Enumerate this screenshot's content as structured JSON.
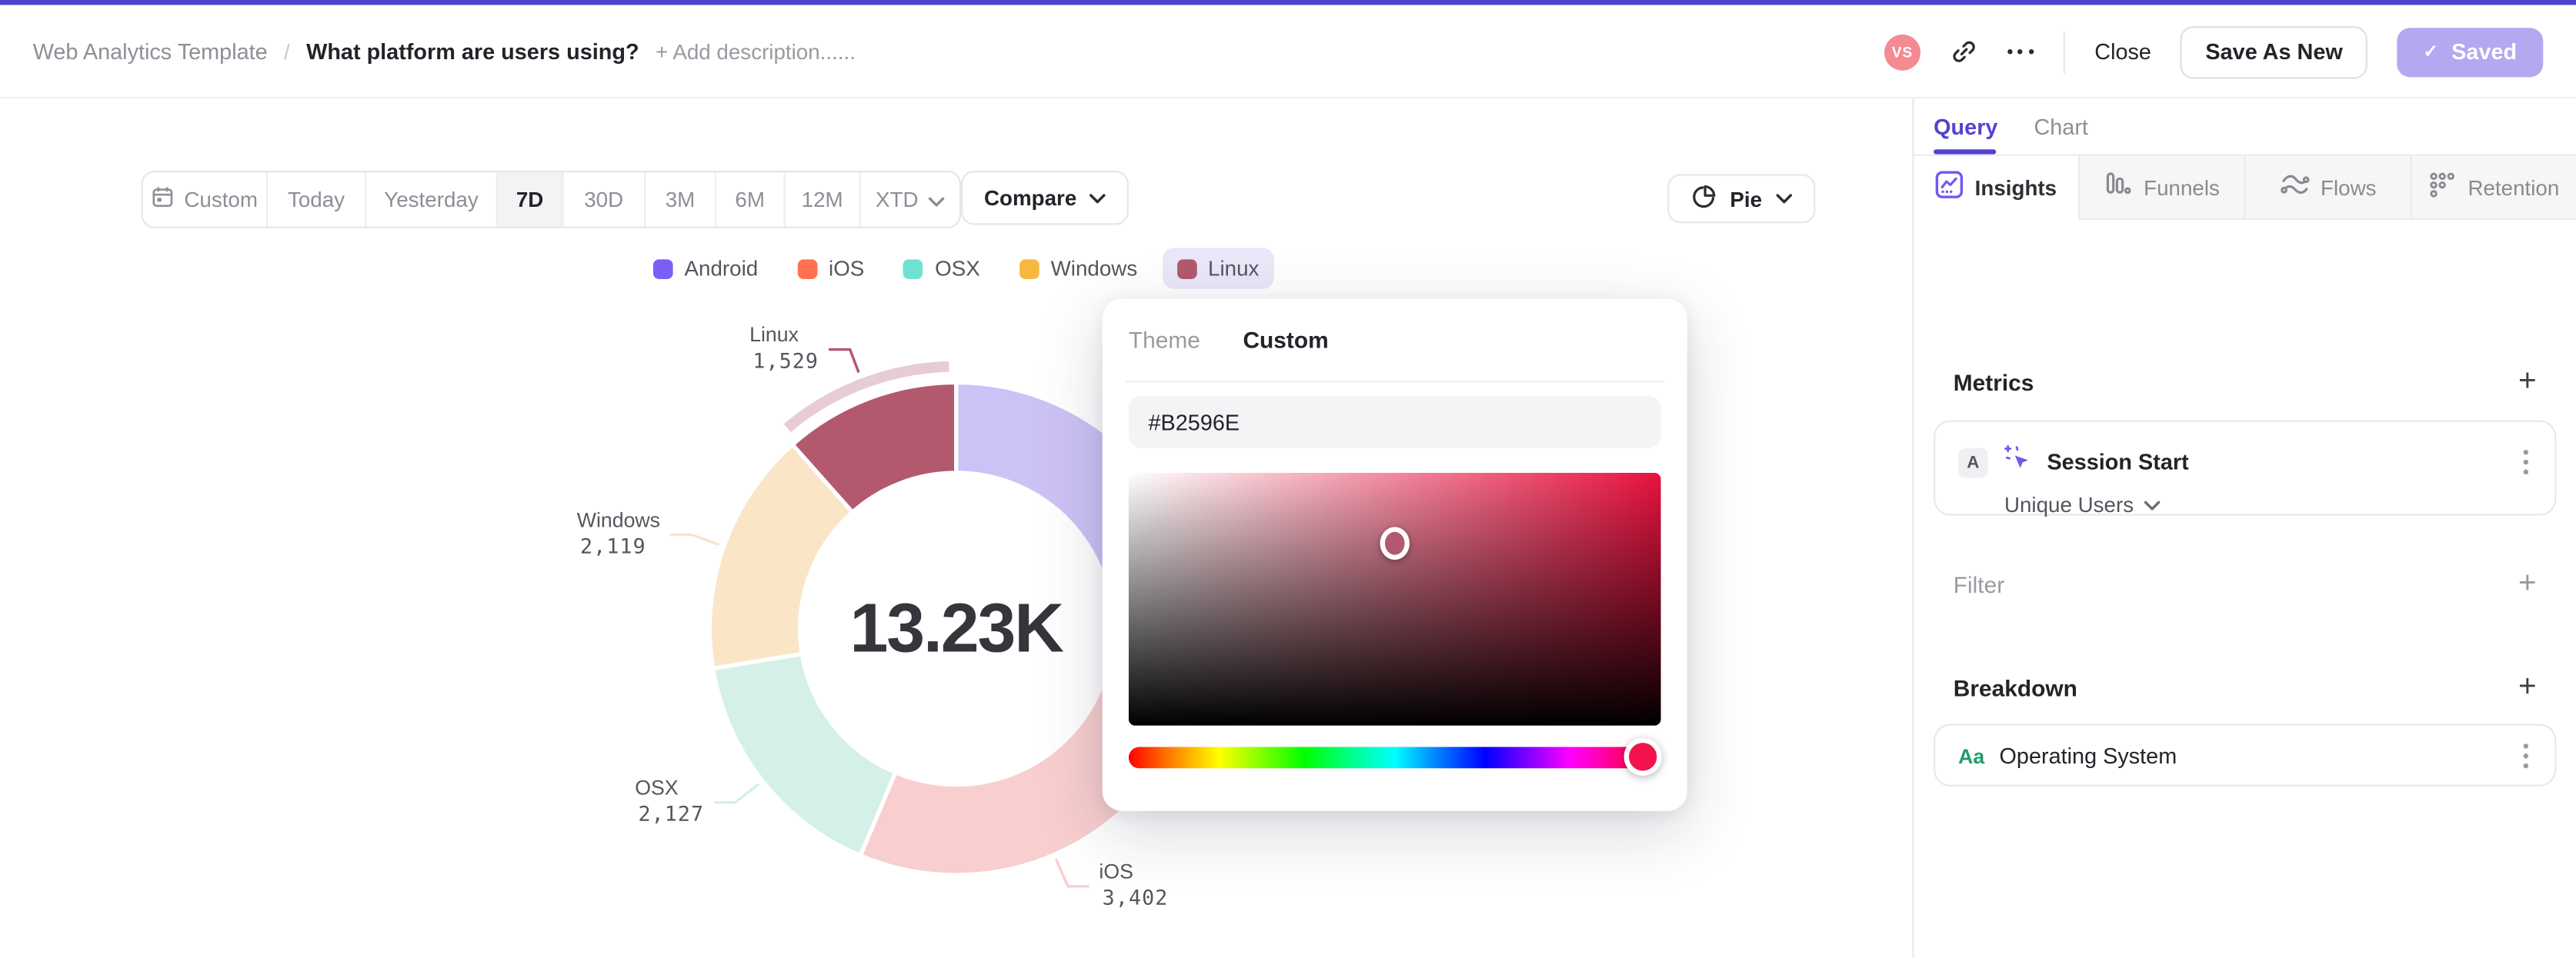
{
  "colors": {
    "accent": "#5243D2",
    "top_strip": "#4F42D0",
    "saved_button_bg": "#B3A9F1",
    "avatar_bg": "#F48B92",
    "legend_selected_pill": "#EAE7F9",
    "hue_handle": "#F2134E",
    "gradient_base_hue": "#E8123F",
    "query_tab_active": "#5243D2"
  },
  "topbar": {
    "breadcrumb_root": "Web Analytics Template",
    "breadcrumb_separator": "/",
    "title": "What platform are users using?",
    "add_description": "+ Add description......",
    "avatar_initials": "VS",
    "close_label": "Close",
    "save_as_new_label": "Save As New",
    "saved_label": "Saved",
    "saved_check": "✓"
  },
  "toolbar": {
    "ranges": [
      {
        "label": "Custom",
        "icon": "calendar-icon"
      },
      {
        "label": "Today"
      },
      {
        "label": "Yesterday"
      },
      {
        "label": "7D"
      },
      {
        "label": "30D"
      },
      {
        "label": "3M"
      },
      {
        "label": "6M"
      },
      {
        "label": "12M"
      },
      {
        "label": "XTD",
        "chevron": true
      }
    ],
    "selected_range": "7D",
    "compare_label": "Compare",
    "chart_type_label": "Pie"
  },
  "chart_data": {
    "type": "pie",
    "subtype": "donut",
    "center_total": "13.23K",
    "total_value": 13230,
    "selected_slice": "Linux",
    "legend_position": "top",
    "series": [
      {
        "name": "Android",
        "value": 4053,
        "color": "#7B5EF8",
        "muted": "#CDC2F5",
        "label_visible": false
      },
      {
        "name": "iOS",
        "value": 3402,
        "color": "#FF7152",
        "muted": "#F8CECE",
        "label_visible": true
      },
      {
        "name": "OSX",
        "value": 2127,
        "color": "#6FE3D2",
        "muted": "#D5F0E9",
        "label_visible": true
      },
      {
        "name": "Windows",
        "value": 2119,
        "color": "#F5B940",
        "muted": "#FAE5C7",
        "label_visible": true
      },
      {
        "name": "Linux",
        "value": 1529,
        "color": "#B2596E",
        "muted": "#E5CAD3",
        "label_visible": true
      }
    ],
    "halo_color": "#E8CCD5"
  },
  "color_picker": {
    "tabs": [
      "Theme",
      "Custom"
    ],
    "active_tab": "Custom",
    "hex_value": "#B2596E",
    "cursor_x": 0.5,
    "cursor_y": 0.28,
    "hue_position": 0.965
  },
  "sidebar": {
    "panel_tabs": [
      {
        "label": "Query",
        "active": true
      },
      {
        "label": "Chart",
        "active": false
      }
    ],
    "view_tabs": [
      {
        "label": "Insights",
        "icon": "insights-icon",
        "active": true
      },
      {
        "label": "Funnels",
        "icon": "funnels-icon",
        "active": false
      },
      {
        "label": "Flows",
        "icon": "flows-icon",
        "active": false
      },
      {
        "label": "Retention",
        "icon": "retention-icon",
        "active": false
      }
    ],
    "metrics": {
      "header": "Metrics",
      "add_label": "+",
      "items": [
        {
          "badge": "A",
          "icon": "sparkle-cursor-icon",
          "label": "Session Start",
          "dropdown": "Unique Users"
        }
      ]
    },
    "filter": {
      "header": "Filter",
      "add_label": "+"
    },
    "breakdown": {
      "header": "Breakdown",
      "add_label": "+",
      "items": [
        {
          "icon_text": "Aa",
          "label": "Operating System"
        }
      ]
    }
  }
}
